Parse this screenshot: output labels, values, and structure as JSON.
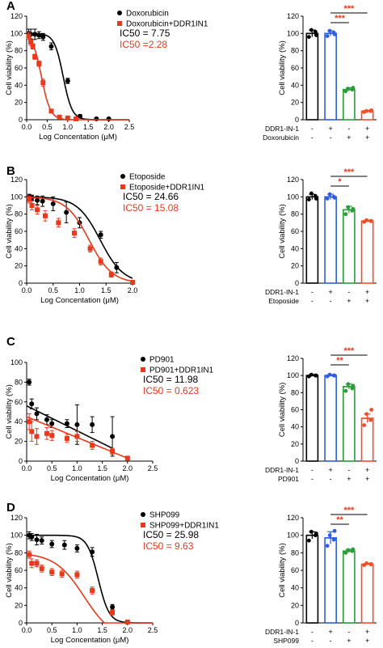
{
  "colors": {
    "black": "#000000",
    "red": "#e8391d",
    "blue": "#2f5fe0",
    "green": "#2a9d3a",
    "orange": "#f0502a"
  },
  "chart_data": [
    {
      "panel": "A",
      "type": "scatter",
      "xlabel": "Log Concentation (μM)",
      "ylabel": "Cell viability (%)",
      "xlim": [
        0,
        2.5
      ],
      "ylim": [
        0,
        120
      ],
      "xticks": [
        "0.0",
        "0.5",
        "1.0",
        "1.5",
        "2.0",
        "2.5"
      ],
      "yticks": [
        "0",
        "20",
        "40",
        "60",
        "80",
        "100",
        "120"
      ],
      "ic50": [
        {
          "text": "IC50 = 7.75",
          "color": "black"
        },
        {
          "text": "IC50 =2.28",
          "color": "red"
        }
      ],
      "series": [
        {
          "name": "Doxorubicin",
          "color": "black",
          "marker": "circle",
          "points": [
            [
              0.05,
              100
            ],
            [
              0.1,
              99
            ],
            [
              0.2,
              99
            ],
            [
              0.3,
              98
            ],
            [
              0.4,
              96
            ],
            [
              0.6,
              85
            ],
            [
              1.0,
              45
            ],
            [
              1.3,
              4
            ],
            [
              1.7,
              1
            ],
            [
              2.0,
              1
            ]
          ],
          "err": [
            5,
            6,
            6,
            4,
            4,
            4,
            3,
            2,
            1,
            1
          ],
          "fit": {
            "top": 100,
            "bottom": 0,
            "ec50": 0.89,
            "hill": 4
          }
        },
        {
          "name": "Doxorubicin+DDR1IN1",
          "color": "red",
          "marker": "square",
          "points": [
            [
              0.05,
              97
            ],
            [
              0.1,
              90
            ],
            [
              0.15,
              85
            ],
            [
              0.2,
              73
            ],
            [
              0.3,
              65
            ],
            [
              0.4,
              43
            ],
            [
              0.6,
              10
            ],
            [
              0.8,
              3
            ],
            [
              1.0,
              2
            ],
            [
              1.2,
              1
            ]
          ],
          "err": [
            4,
            4,
            3,
            3,
            3,
            4,
            2,
            1,
            1,
            1
          ],
          "fit": {
            "top": 100,
            "bottom": 0,
            "ec50": 0.36,
            "hill": 4
          }
        }
      ]
    },
    {
      "panel": "B",
      "type": "scatter",
      "xlabel": "Log Concentation (μM)",
      "ylabel": "Cell viability (%)",
      "xlim": [
        0,
        2.0
      ],
      "ylim": [
        0,
        120
      ],
      "xticks": [
        "0.0",
        "0.5",
        "1.0",
        "1.5",
        "2.0"
      ],
      "yticks": [
        "0",
        "20",
        "40",
        "60",
        "80",
        "100",
        "120"
      ],
      "ic50": [
        {
          "text": "IC50 = 24.66",
          "color": "black"
        },
        {
          "text": "IC50 = 15.08",
          "color": "red"
        }
      ],
      "series": [
        {
          "name": "Etoposide",
          "color": "black",
          "marker": "circle",
          "points": [
            [
              0.05,
              100
            ],
            [
              0.1,
              99
            ],
            [
              0.2,
              96
            ],
            [
              0.3,
              95
            ],
            [
              0.5,
              92
            ],
            [
              0.75,
              82
            ],
            [
              1.0,
              70
            ],
            [
              1.4,
              56
            ],
            [
              1.7,
              18
            ],
            [
              2.0,
              1
            ]
          ],
          "err": [
            3,
            3,
            5,
            6,
            8,
            12,
            6,
            4,
            6,
            2
          ],
          "fit": {
            "top": 100,
            "bottom": 0,
            "ec50": 1.39,
            "hill": 2
          }
        },
        {
          "name": "Etoposide+DDR1IN1",
          "color": "red",
          "marker": "square",
          "points": [
            [
              0.05,
              97
            ],
            [
              0.1,
              90
            ],
            [
              0.2,
              85
            ],
            [
              0.35,
              78
            ],
            [
              0.6,
              70
            ],
            [
              0.9,
              58
            ],
            [
              1.2,
              40
            ],
            [
              1.4,
              25
            ],
            [
              1.6,
              10
            ],
            [
              2.0,
              1
            ]
          ],
          "err": [
            4,
            5,
            5,
            6,
            5,
            5,
            4,
            4,
            3,
            1
          ],
          "fit": {
            "top": 100,
            "bottom": 0,
            "ec50": 1.18,
            "hill": 2
          }
        }
      ]
    },
    {
      "panel": "C",
      "type": "scatter",
      "xlabel": "Log Concentation (μM)",
      "ylabel": "Cell viability (%)",
      "xlim": [
        0,
        2.5
      ],
      "ylim": [
        0,
        100
      ],
      "xticks": [
        "0.0",
        "0.5",
        "1.0",
        "1.5",
        "2.0",
        "2.5"
      ],
      "yticks": [
        "0",
        "20",
        "40",
        "60",
        "80",
        "100"
      ],
      "ic50": [
        {
          "text": "IC50 = 11.98",
          "color": "black"
        },
        {
          "text": "IC50 = 0.623",
          "color": "red"
        }
      ],
      "series": [
        {
          "name": "PD901",
          "color": "black",
          "marker": "circle",
          "points": [
            [
              0.05,
              80
            ],
            [
              0.1,
              58
            ],
            [
              0.2,
              48
            ],
            [
              0.4,
              42
            ],
            [
              0.5,
              38
            ],
            [
              0.8,
              38
            ],
            [
              1.0,
              37
            ],
            [
              1.3,
              37
            ],
            [
              1.7,
              25
            ]
          ],
          "err": [
            3,
            5,
            6,
            5,
            4,
            4,
            20,
            8,
            20
          ],
          "line": [
            [
              0,
              56
            ],
            [
              1.7,
              13
            ]
          ]
        },
        {
          "name": "PD901+DDR1IN1",
          "color": "red",
          "marker": "square",
          "points": [
            [
              0.05,
              40
            ],
            [
              0.1,
              30
            ],
            [
              0.2,
              25
            ],
            [
              0.4,
              28
            ],
            [
              0.5,
              26
            ],
            [
              0.8,
              23
            ],
            [
              1.0,
              25
            ],
            [
              1.3,
              16
            ],
            [
              1.7,
              10
            ],
            [
              2.0,
              3
            ]
          ],
          "err": [
            8,
            10,
            8,
            6,
            5,
            4,
            5,
            4,
            3,
            1
          ],
          "line": [
            [
              0,
              45
            ],
            [
              2.0,
              3
            ]
          ]
        }
      ]
    },
    {
      "panel": "D",
      "type": "scatter",
      "xlabel": "Log Concentation (μM)",
      "ylabel": "Cell viability (%)",
      "xlim": [
        0,
        2.5
      ],
      "ylim": [
        0,
        120
      ],
      "xticks": [
        "0.0",
        "0.5",
        "1.0",
        "1.5",
        "2.0",
        "2.5"
      ],
      "yticks": [
        "0",
        "20",
        "40",
        "60",
        "80",
        "100",
        "120"
      ],
      "ic50": [
        {
          "text": "IC50 = 25.98",
          "color": "black"
        },
        {
          "text": "IC50 = 9.63",
          "color": "red"
        }
      ],
      "series": [
        {
          "name": "SHP099",
          "color": "black",
          "marker": "circle",
          "points": [
            [
              0.05,
              100
            ],
            [
              0.1,
              98
            ],
            [
              0.2,
              95
            ],
            [
              0.3,
              94
            ],
            [
              0.5,
              90
            ],
            [
              0.75,
              89
            ],
            [
              1.0,
              85
            ],
            [
              1.3,
              81
            ],
            [
              1.7,
              18
            ],
            [
              2.0,
              1
            ]
          ],
          "err": [
            4,
            4,
            6,
            4,
            4,
            5,
            4,
            5,
            3,
            1
          ],
          "fit": {
            "top": 100,
            "bottom": 0,
            "ec50": 1.42,
            "hill": 4
          }
        },
        {
          "name": "SHP099+DDR1IN1",
          "color": "red",
          "marker": "square",
          "points": [
            [
              0.05,
              78
            ],
            [
              0.1,
              68
            ],
            [
              0.2,
              68
            ],
            [
              0.3,
              62
            ],
            [
              0.5,
              58
            ],
            [
              0.7,
              56
            ],
            [
              1.0,
              55
            ],
            [
              1.3,
              37
            ],
            [
              1.7,
              12
            ],
            [
              2.0,
              1
            ]
          ],
          "err": [
            4,
            5,
            4,
            4,
            4,
            4,
            4,
            4,
            3,
            1
          ],
          "fit": {
            "top": 80,
            "bottom": -20,
            "ec50": 1.14,
            "hill": 1.5
          }
        }
      ]
    },
    {
      "panel": "A-bar",
      "type": "bar",
      "ylabel": "Cell viability (%)",
      "ylim": [
        0,
        120
      ],
      "yticks": [
        "0",
        "20",
        "40",
        "60",
        "80",
        "100",
        "120"
      ],
      "values": [
        100,
        100,
        35,
        10
      ],
      "errors": [
        4,
        3,
        2,
        1
      ],
      "bar_colors": [
        "black",
        "blue",
        "green",
        "orange"
      ],
      "points": [
        [
          96,
          102,
          104,
          98
        ],
        [
          97,
          101,
          103,
          99
        ],
        [
          33,
          35,
          36,
          37
        ],
        [
          9,
          10,
          10,
          11
        ]
      ],
      "rows": [
        {
          "label": "DDR1-IN-1",
          "signs": [
            "-",
            "+",
            "-",
            "+"
          ]
        },
        {
          "label": "Doxorubicin",
          "signs": [
            "-",
            "-",
            "+",
            "+"
          ]
        }
      ],
      "sig": [
        {
          "from": 1,
          "to": 2,
          "label": "***"
        },
        {
          "from": 1,
          "to": 3,
          "label": "***"
        }
      ]
    },
    {
      "panel": "B-bar",
      "type": "bar",
      "ylabel": "Cell viability (%)",
      "ylim": [
        0,
        120
      ],
      "yticks": [
        "0",
        "20",
        "40",
        "60",
        "80",
        "100",
        "120"
      ],
      "values": [
        100,
        100,
        85,
        72
      ],
      "errors": [
        3,
        3,
        4,
        1
      ],
      "bar_colors": [
        "black",
        "blue",
        "green",
        "orange"
      ],
      "points": [
        [
          97,
          101,
          104,
          98
        ],
        [
          98,
          100,
          103,
          99
        ],
        [
          80,
          84,
          88,
          86
        ],
        [
          71,
          72,
          73,
          72
        ]
      ],
      "rows": [
        {
          "label": "DDR1-IN-1",
          "signs": [
            "-",
            "+",
            "-",
            "+"
          ]
        },
        {
          "label": "Etoposide",
          "signs": [
            "-",
            "-",
            "+",
            "+"
          ]
        }
      ],
      "sig": [
        {
          "from": 1,
          "to": 2,
          "label": "*"
        },
        {
          "from": 1,
          "to": 3,
          "label": "***"
        }
      ]
    },
    {
      "panel": "C-bar",
      "type": "bar",
      "ylabel": "Cell viability (%)",
      "ylim": [
        0,
        120
      ],
      "yticks": [
        "0",
        "20",
        "40",
        "60",
        "80",
        "100",
        "120"
      ],
      "values": [
        100,
        100,
        87,
        50
      ],
      "errors": [
        1,
        1,
        3,
        5
      ],
      "bar_colors": [
        "black",
        "blue",
        "green",
        "orange"
      ],
      "points": [
        [
          99,
          100,
          101,
          100
        ],
        [
          99,
          100,
          101,
          100
        ],
        [
          82,
          85,
          90,
          88
        ],
        [
          42,
          48,
          55,
          60
        ]
      ],
      "rows": [
        {
          "label": "DDR1-IN-1",
          "signs": [
            "-",
            "+",
            "-",
            "+"
          ]
        },
        {
          "label": "PD901",
          "signs": [
            "-",
            "-",
            "+",
            "+"
          ]
        }
      ],
      "sig": [
        {
          "from": 1,
          "to": 2,
          "label": "**"
        },
        {
          "from": 1,
          "to": 3,
          "label": "***"
        }
      ]
    },
    {
      "panel": "D-bar",
      "type": "bar",
      "ylabel": "Cell viability (%)",
      "ylim": [
        0,
        120
      ],
      "yticks": [
        "0",
        "20",
        "40",
        "60",
        "80",
        "100",
        "120"
      ],
      "values": [
        100,
        97,
        82,
        67
      ],
      "errors": [
        4,
        7,
        2,
        1
      ],
      "bar_colors": [
        "black",
        "blue",
        "green",
        "orange"
      ],
      "points": [
        [
          94,
          100,
          104,
          102
        ],
        [
          88,
          95,
          100,
          105
        ],
        [
          80,
          82,
          83,
          84
        ],
        [
          66,
          67,
          68,
          67
        ]
      ],
      "rows": [
        {
          "label": "DDR1-IN-1",
          "signs": [
            "-",
            "+",
            "-",
            "+"
          ]
        },
        {
          "label": "SHP099",
          "signs": [
            "-",
            "-",
            "+",
            "+"
          ]
        }
      ],
      "sig": [
        {
          "from": 1,
          "to": 2,
          "label": "**"
        },
        {
          "from": 1,
          "to": 3,
          "label": "***"
        }
      ]
    }
  ]
}
